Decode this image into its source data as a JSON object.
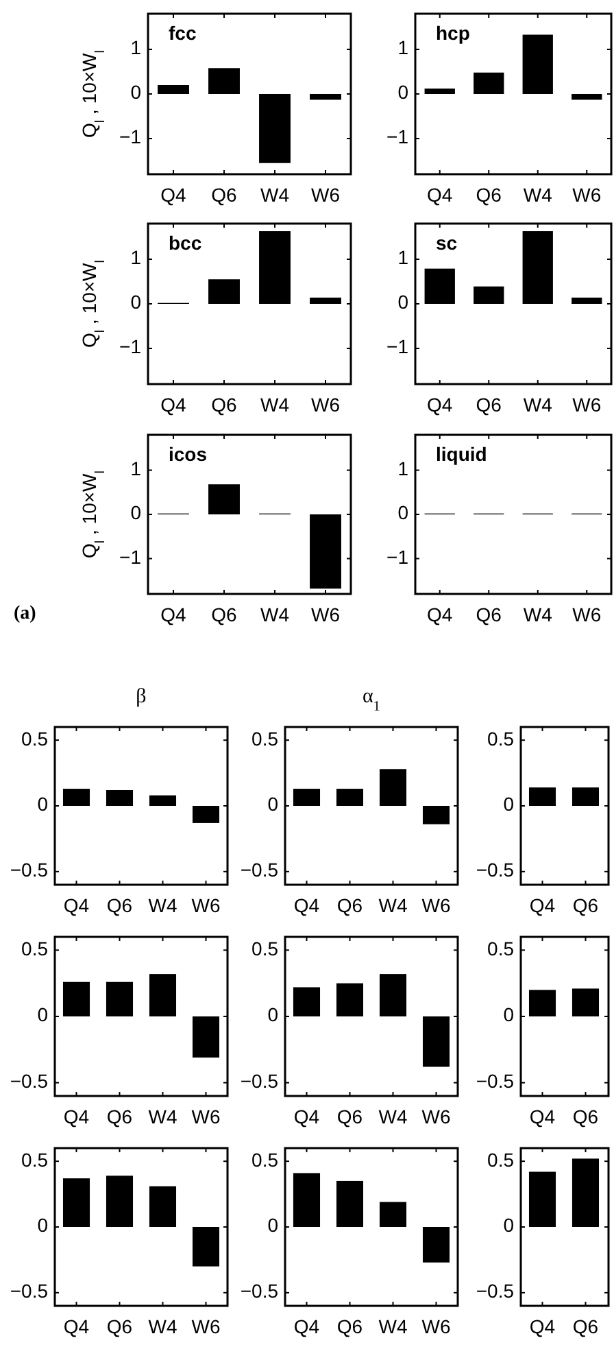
{
  "chart_data": [
    {
      "type": "bar",
      "title": "fcc",
      "ylabel": "Q$_{l}$, 10×W$_{l}$",
      "categories": [
        "Q4",
        "Q6",
        "W4",
        "W6"
      ],
      "values": [
        0.2,
        0.58,
        -1.55,
        -0.13
      ],
      "color": "#000000",
      "ylim": [
        -1.8,
        1.8
      ],
      "yticks": [
        -1,
        0,
        1
      ]
    },
    {
      "type": "bar",
      "title": "hcp",
      "categories": [
        "Q4",
        "Q6",
        "W4",
        "W6"
      ],
      "values": [
        0.12,
        0.48,
        1.33,
        -0.13
      ],
      "color": "#000000",
      "ylim": [
        -1.8,
        1.8
      ],
      "yticks": [
        -1,
        0,
        1
      ]
    },
    {
      "type": "bar",
      "title": "bcc",
      "ylabel": "Q$_{l}$, 10×W$_{l}$",
      "categories": [
        "Q4",
        "Q6",
        "W4",
        "W6"
      ],
      "values": [
        0.02,
        0.55,
        1.63,
        0.14
      ],
      "color": "#000000",
      "ylim": [
        -1.8,
        1.8
      ],
      "yticks": [
        -1,
        0,
        1
      ]
    },
    {
      "type": "bar",
      "title": "sc",
      "categories": [
        "Q4",
        "Q6",
        "W4",
        "W6"
      ],
      "values": [
        0.79,
        0.39,
        1.63,
        0.14
      ],
      "color": "#000000",
      "ylim": [
        -1.8,
        1.8
      ],
      "yticks": [
        -1,
        0,
        1
      ]
    },
    {
      "type": "bar",
      "title": "icos",
      "ylabel": "Q$_{l}$, 10×W$_{l}$",
      "annotations": [
        "(a)"
      ],
      "categories": [
        "Q4",
        "Q6",
        "W4",
        "W6"
      ],
      "values": [
        0.02,
        0.68,
        0.02,
        -1.68
      ],
      "color": "#000000",
      "ylim": [
        -1.8,
        1.8
      ],
      "yticks": [
        -1,
        0,
        1
      ]
    },
    {
      "type": "bar",
      "title": "liquid",
      "categories": [
        "Q4",
        "Q6",
        "W4",
        "W6"
      ],
      "values": [
        0.02,
        0.02,
        0.02,
        0.02
      ],
      "color": "#000000",
      "ylim": [
        -1.8,
        1.8
      ],
      "yticks": [
        -1,
        0,
        1
      ]
    },
    {
      "type": "bar",
      "title": "β",
      "categories": [
        "Q4",
        "Q6",
        "W4",
        "W6"
      ],
      "values": [
        0.13,
        0.12,
        0.08,
        -0.13
      ],
      "color": "#000000",
      "ylim": [
        -0.6,
        0.6
      ],
      "yticks": [
        -0.5,
        0,
        0.5
      ]
    },
    {
      "type": "bar",
      "title": "α$_{1}$",
      "categories": [
        "Q4",
        "Q6",
        "W4",
        "W6"
      ],
      "values": [
        0.13,
        0.13,
        0.28,
        -0.14
      ],
      "color": "#000000",
      "ylim": [
        -0.6,
        0.6
      ],
      "yticks": [
        -0.5,
        0,
        0.5
      ]
    },
    {
      "type": "bar",
      "categories": [
        "Q4",
        "Q6"
      ],
      "values": [
        0.14,
        0.14
      ],
      "color": "#000000",
      "ylim": [
        -0.6,
        0.6
      ],
      "yticks": [
        -0.5,
        0,
        0.5
      ]
    },
    {
      "type": "bar",
      "categories": [
        "Q4",
        "Q6",
        "W4",
        "W6"
      ],
      "values": [
        0.26,
        0.26,
        0.32,
        -0.31
      ],
      "color": "#000000",
      "ylim": [
        -0.6,
        0.6
      ],
      "yticks": [
        -0.5,
        0,
        0.5
      ]
    },
    {
      "type": "bar",
      "categories": [
        "Q4",
        "Q6",
        "W4",
        "W6"
      ],
      "values": [
        0.22,
        0.25,
        0.32,
        -0.38
      ],
      "color": "#000000",
      "ylim": [
        -0.6,
        0.6
      ],
      "yticks": [
        -0.5,
        0,
        0.5
      ]
    },
    {
      "type": "bar",
      "categories": [
        "Q4",
        "Q6"
      ],
      "values": [
        0.2,
        0.21
      ],
      "color": "#000000",
      "ylim": [
        -0.6,
        0.6
      ],
      "yticks": [
        -0.5,
        0,
        0.5
      ]
    },
    {
      "type": "bar",
      "categories": [
        "Q4",
        "Q6",
        "W4",
        "W6"
      ],
      "values": [
        0.37,
        0.39,
        0.31,
        -0.3
      ],
      "color": "#000000",
      "ylim": [
        -0.6,
        0.6
      ],
      "yticks": [
        -0.5,
        0,
        0.5
      ]
    },
    {
      "type": "bar",
      "categories": [
        "Q4",
        "Q6",
        "W4",
        "W6"
      ],
      "values": [
        0.41,
        0.35,
        0.19,
        -0.27
      ],
      "color": "#000000",
      "ylim": [
        -0.6,
        0.6
      ],
      "yticks": [
        -0.5,
        0,
        0.5
      ]
    },
    {
      "type": "bar",
      "categories": [
        "Q4",
        "Q6"
      ],
      "values": [
        0.42,
        0.52
      ],
      "color": "#000000",
      "ylim": [
        -0.6,
        0.6
      ],
      "yticks": [
        -0.5,
        0,
        0.5
      ]
    }
  ]
}
